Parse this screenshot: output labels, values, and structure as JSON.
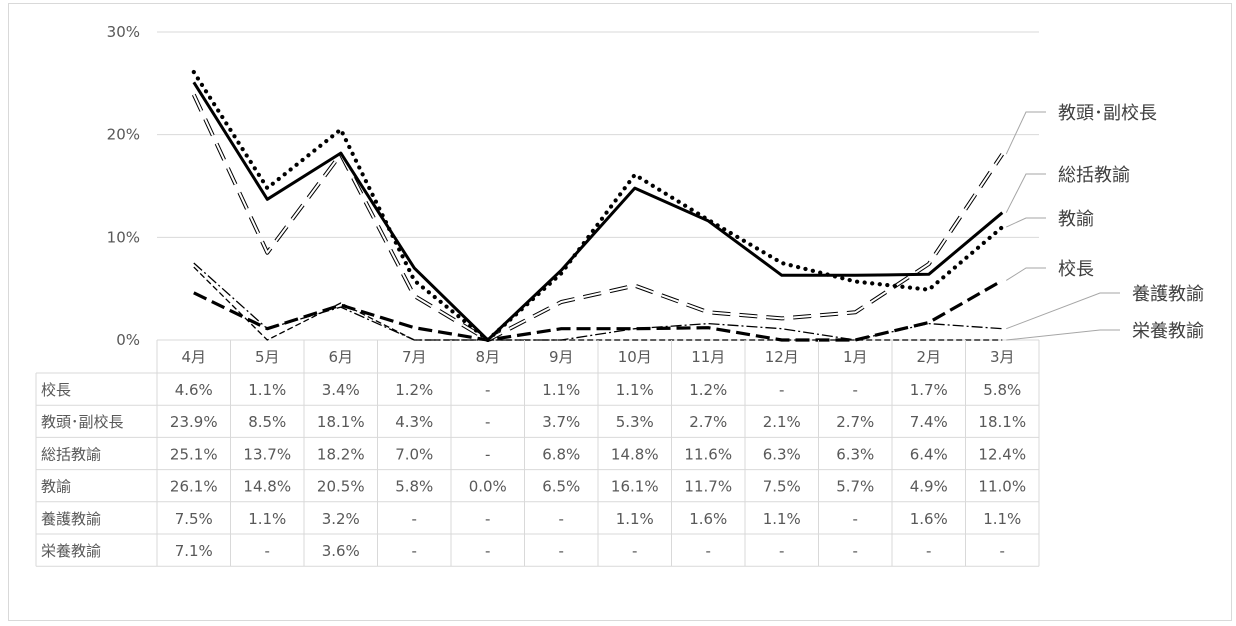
{
  "chart_data": {
    "type": "line",
    "title": "",
    "xlabel": "",
    "ylabel": "",
    "categories": [
      "4月",
      "5月",
      "6月",
      "7月",
      "8月",
      "9月",
      "10月",
      "11月",
      "12月",
      "1月",
      "2月",
      "3月"
    ],
    "y_ticks": [
      "0%",
      "10%",
      "20%",
      "30%"
    ],
    "ylim": [
      0,
      30
    ],
    "grid": true,
    "series": [
      {
        "name": "校長",
        "style": "long-dash bold",
        "color": "#000000",
        "values": [
          4.6,
          1.1,
          3.4,
          1.2,
          null,
          1.1,
          1.1,
          1.2,
          null,
          null,
          1.7,
          5.8
        ],
        "display": [
          "4.6%",
          "1.1%",
          "3.4%",
          "1.2%",
          "-",
          "1.1%",
          "1.1%",
          "1.2%",
          "-",
          "-",
          "1.7%",
          "5.8%"
        ]
      },
      {
        "name": "教頭･副校長",
        "style": "hollow-dash",
        "color": "#000000",
        "values": [
          23.9,
          8.5,
          18.1,
          4.3,
          null,
          3.7,
          5.3,
          2.7,
          2.1,
          2.7,
          7.4,
          18.1
        ],
        "display": [
          "23.9%",
          "8.5%",
          "18.1%",
          "4.3%",
          "-",
          "3.7%",
          "5.3%",
          "2.7%",
          "2.1%",
          "2.7%",
          "7.4%",
          "18.1%"
        ]
      },
      {
        "name": "総括教諭",
        "style": "solid bold",
        "color": "#000000",
        "values": [
          25.1,
          13.7,
          18.2,
          7.0,
          null,
          6.8,
          14.8,
          11.6,
          6.3,
          6.3,
          6.4,
          12.4
        ],
        "display": [
          "25.1%",
          "13.7%",
          "18.2%",
          "7.0%",
          "-",
          "6.8%",
          "14.8%",
          "11.6%",
          "6.3%",
          "6.3%",
          "6.4%",
          "12.4%"
        ]
      },
      {
        "name": "教諭",
        "style": "dotted bold",
        "color": "#000000",
        "values": [
          26.1,
          14.8,
          20.5,
          5.8,
          0.0,
          6.5,
          16.1,
          11.7,
          7.5,
          5.7,
          4.9,
          11.0
        ],
        "display": [
          "26.1%",
          "14.8%",
          "20.5%",
          "5.8%",
          "0.0%",
          "6.5%",
          "16.1%",
          "11.7%",
          "7.5%",
          "5.7%",
          "4.9%",
          "11.0%"
        ]
      },
      {
        "name": "養護教諭",
        "style": "dash-dot thin",
        "color": "#000000",
        "values": [
          7.5,
          1.1,
          3.2,
          null,
          null,
          null,
          1.1,
          1.6,
          1.1,
          null,
          1.6,
          1.1
        ],
        "display": [
          "7.5%",
          "1.1%",
          "3.2%",
          "-",
          "-",
          "-",
          "1.1%",
          "1.6%",
          "1.1%",
          "-",
          "1.6%",
          "1.1%"
        ]
      },
      {
        "name": "栄養教諭",
        "style": "dash thin",
        "color": "#000000",
        "values": [
          7.1,
          null,
          3.6,
          null,
          null,
          null,
          null,
          null,
          null,
          null,
          null,
          null
        ],
        "display": [
          "7.1%",
          "-",
          "3.6%",
          "-",
          "-",
          "-",
          "-",
          "-",
          "-",
          "-",
          "-",
          "-"
        ]
      }
    ],
    "end_labels": [
      "教頭･副校長",
      "総括教諭",
      "教諭",
      "校長",
      "養護教諭",
      "栄養教諭"
    ]
  }
}
